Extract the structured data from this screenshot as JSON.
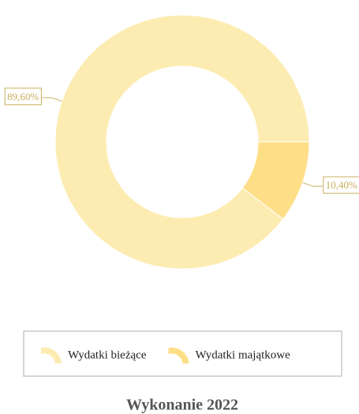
{
  "chart_data": {
    "type": "pie",
    "donut": true,
    "title": "Wykonanie 2022",
    "categories": [
      "Wydatki bieżące",
      "Wydatki majątkowe"
    ],
    "values": [
      89.6,
      10.4
    ],
    "value_labels": [
      "89,60%",
      "10,40%"
    ],
    "colors": [
      "#fdecb2",
      "#fedf88"
    ],
    "legend": "bottom"
  }
}
